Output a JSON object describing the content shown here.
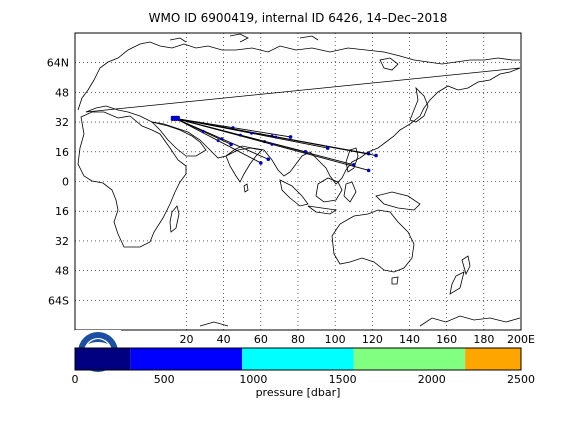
{
  "title": "WMO ID 6900419, internal ID 6426, 14–Dec–2018",
  "map": {
    "lon_range": [
      -40,
      200
    ],
    "lat_range": [
      -80,
      80
    ],
    "lat_ticks": [
      {
        "value": 64,
        "label": "64N"
      },
      {
        "value": 48,
        "label": "48"
      },
      {
        "value": 32,
        "label": "32"
      },
      {
        "value": 16,
        "label": "16"
      },
      {
        "value": 0,
        "label": "0"
      },
      {
        "value": -16,
        "label": "16"
      },
      {
        "value": -32,
        "label": "32"
      },
      {
        "value": -48,
        "label": "48"
      },
      {
        "value": -64,
        "label": "64S"
      }
    ],
    "lon_ticks": [
      {
        "value": 20,
        "label": "20"
      },
      {
        "value": 40,
        "label": "40"
      },
      {
        "value": 60,
        "label": "60"
      },
      {
        "value": 80,
        "label": "80"
      },
      {
        "value": 100,
        "label": "100"
      },
      {
        "value": 120,
        "label": "120"
      },
      {
        "value": 140,
        "label": "140"
      },
      {
        "value": 160,
        "label": "160"
      },
      {
        "value": 180,
        "label": "180"
      },
      {
        "value": 200,
        "label": "200E"
      }
    ],
    "grid": "dotted",
    "trajectory_colors": {
      "line": "#000000",
      "marker": "#0000cc"
    },
    "trajectory_origin": {
      "lon": 14,
      "lat": 34
    },
    "trajectory_endpoints": [
      {
        "lon": 76,
        "lat": 24
      },
      {
        "lon": 118,
        "lat": 15
      },
      {
        "lon": 122,
        "lat": 14
      },
      {
        "lon": 110,
        "lat": 9
      },
      {
        "lon": 84,
        "lat": 16
      },
      {
        "lon": 64,
        "lat": 12
      },
      {
        "lon": 60,
        "lat": 10
      },
      {
        "lon": 44,
        "lat": 20
      },
      {
        "lon": 118,
        "lat": 6
      },
      {
        "lon": 96,
        "lat": 18
      }
    ]
  },
  "colorbar": {
    "label": "pressure [dbar]",
    "tick_labels": [
      "0",
      "500",
      "1000",
      "1500",
      "2000",
      "2500"
    ],
    "range": [
      0,
      2500
    ],
    "segments": [
      {
        "from": 0,
        "to": 312,
        "color": "#000080"
      },
      {
        "from": 312,
        "to": 937,
        "color": "#0000ff"
      },
      {
        "from": 937,
        "to": 1562,
        "color": "#00ffff"
      },
      {
        "from": 1562,
        "to": 2187,
        "color": "#80ff80"
      },
      {
        "from": 2187,
        "to": 2500,
        "color": "#ffa500"
      }
    ]
  },
  "logo": {
    "name": "noaa-logo",
    "colors": [
      "#1a4fa3",
      "#4db8ff",
      "#ffffff"
    ]
  }
}
